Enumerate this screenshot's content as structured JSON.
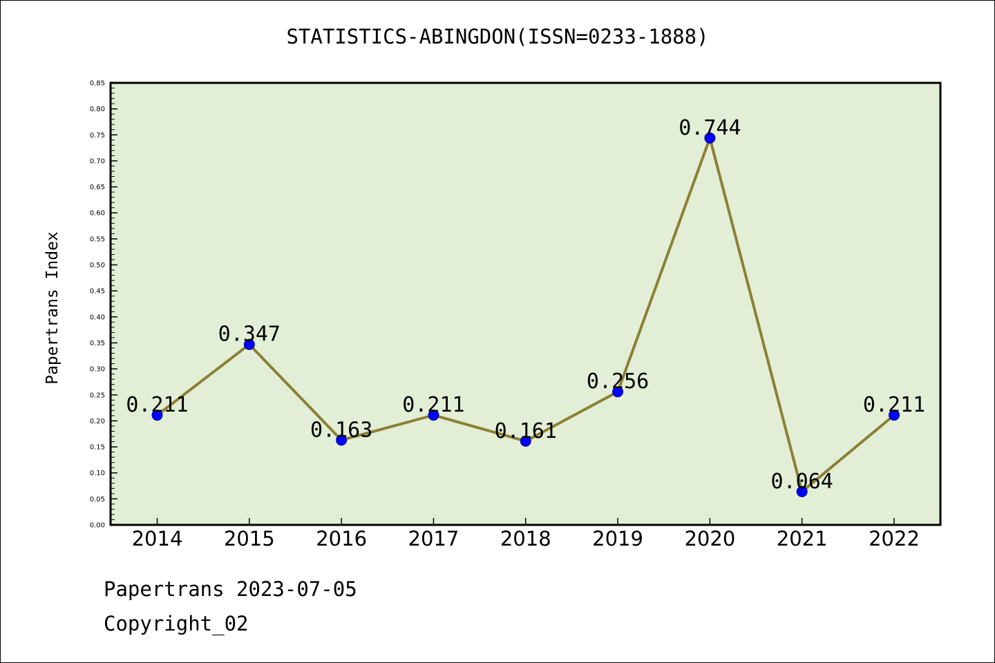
{
  "chart_data": {
    "type": "line",
    "title": "STATISTICS-ABINGDON(ISSN=0233-1888)",
    "xlabel": "",
    "ylabel": "Papertrans Index",
    "categories": [
      "2014",
      "2015",
      "2016",
      "2017",
      "2018",
      "2019",
      "2020",
      "2021",
      "2022"
    ],
    "series": [
      {
        "values": [
          0.211,
          0.347,
          0.163,
          0.211,
          0.161,
          0.256,
          0.744,
          0.064,
          0.211
        ],
        "labels": [
          "0.211",
          "0.347",
          "0.163",
          "0.211",
          "0.161",
          "0.256",
          "0.744",
          "0.064",
          "0.211"
        ]
      }
    ],
    "ylim": [
      0,
      0.85
    ],
    "yticks": [
      "0.00",
      "0.05",
      "0.10",
      "0.15",
      "0.20",
      "0.25",
      "0.30",
      "0.35",
      "0.40",
      "0.45",
      "0.50",
      "0.55",
      "0.60",
      "0.65",
      "0.70",
      "0.75",
      "0.80",
      "0.85"
    ],
    "grid": false,
    "colors": {
      "plot_background": "#e2efd6",
      "line": "#8b8034",
      "marker": "#0000ff"
    }
  },
  "footer": {
    "date_text": "Papertrans 2023-07-05",
    "copyright_text": "Copyright_02"
  }
}
